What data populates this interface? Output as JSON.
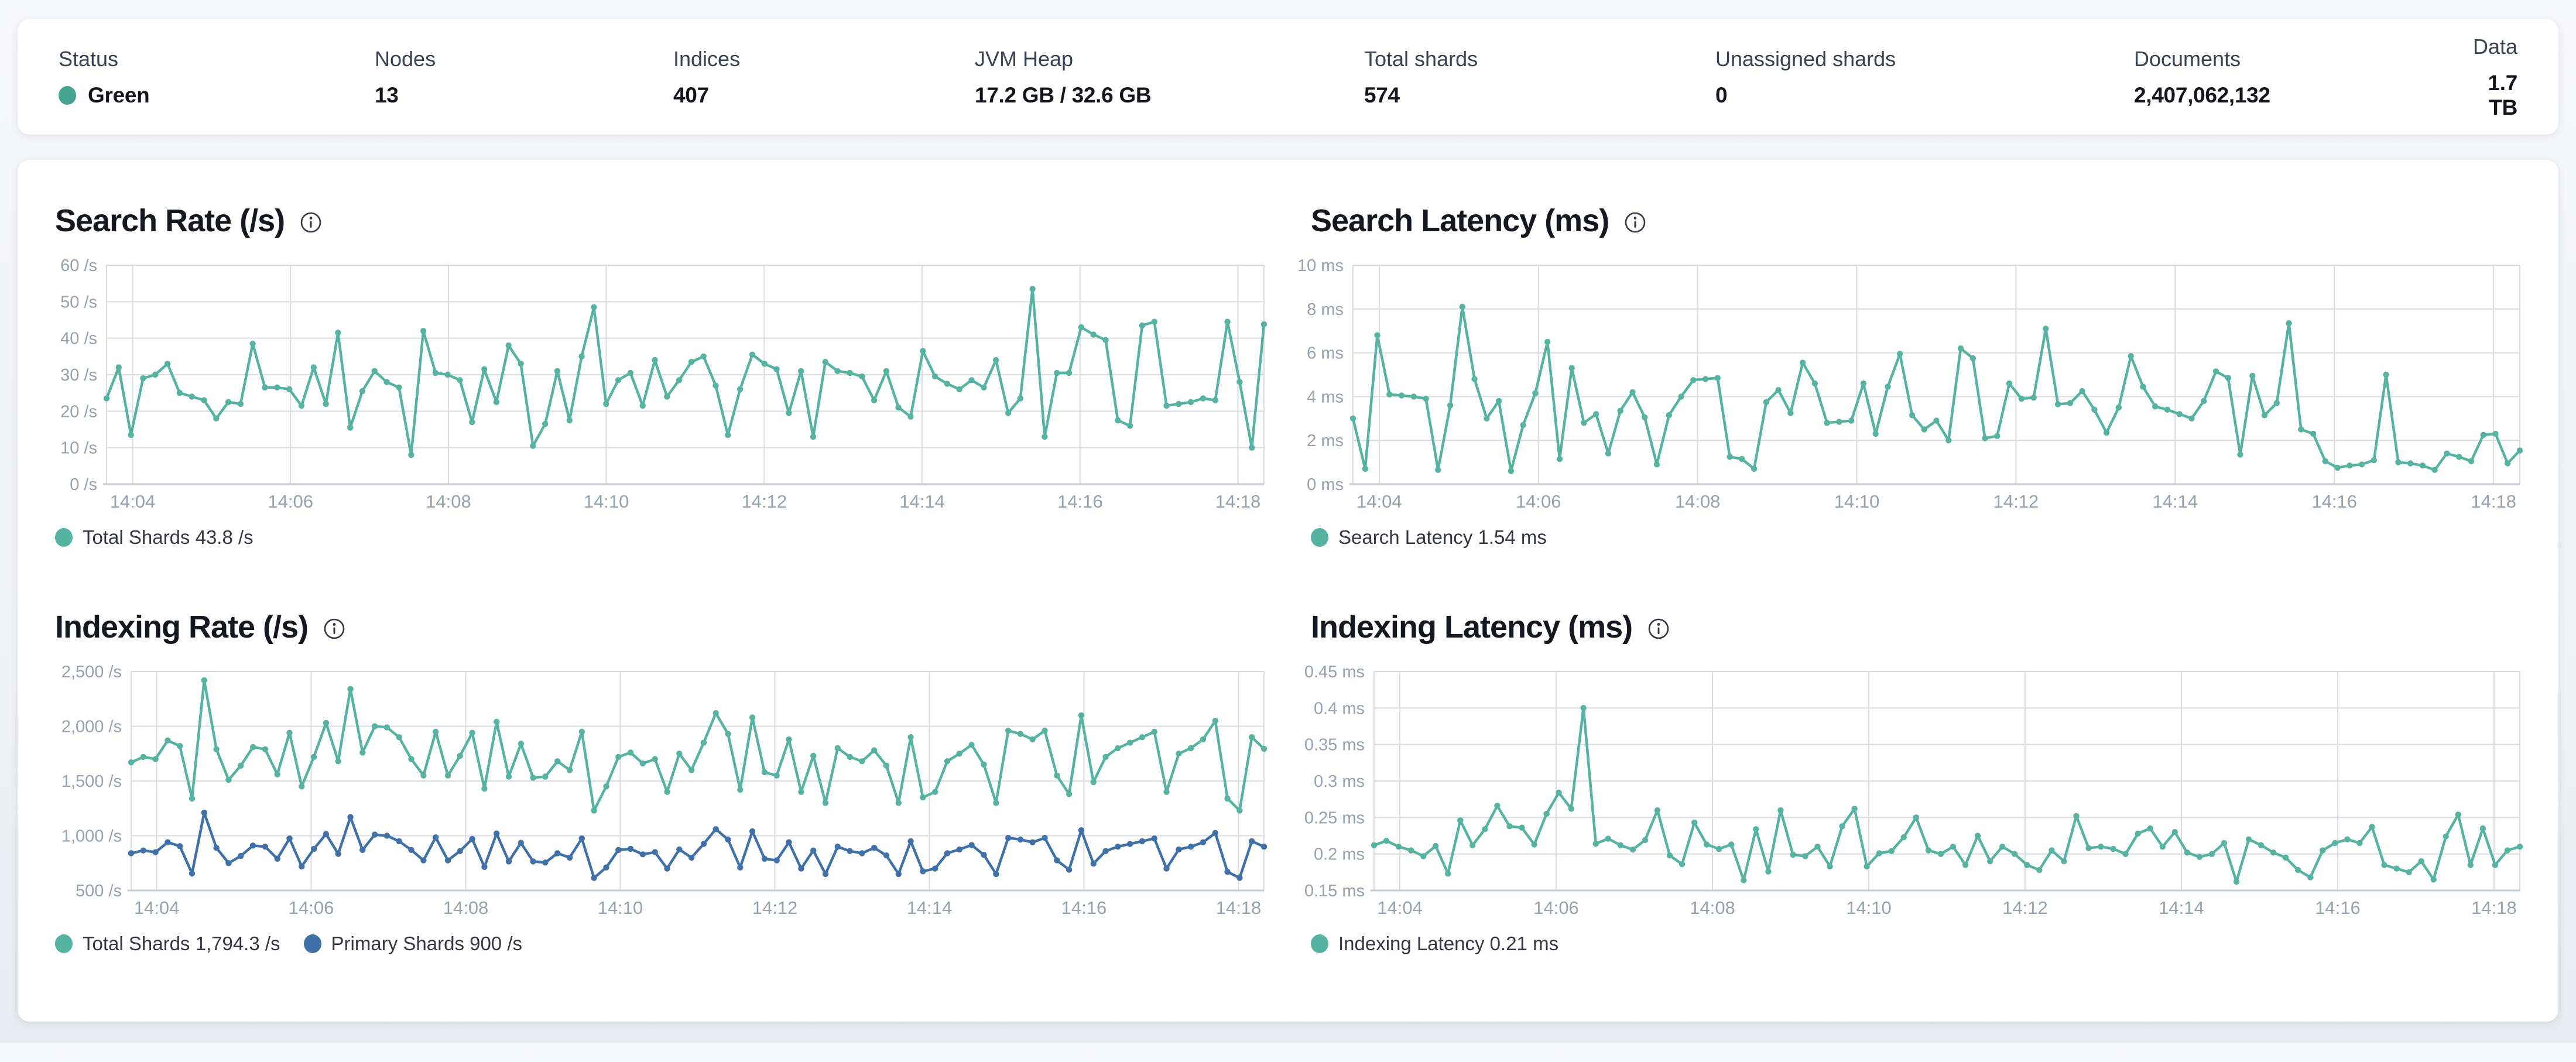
{
  "summary": {
    "items": [
      {
        "label": "Status",
        "value": "Green",
        "dot_color": "#45a492"
      },
      {
        "label": "Nodes",
        "value": "13"
      },
      {
        "label": "Indices",
        "value": "407"
      },
      {
        "label": "JVM Heap",
        "value": "17.2 GB / 32.6 GB"
      },
      {
        "label": "Total shards",
        "value": "574"
      },
      {
        "label": "Unassigned shards",
        "value": "0"
      },
      {
        "label": "Documents",
        "value": "2,407,062,132"
      },
      {
        "label": "Data",
        "value": "1.7 TB"
      }
    ]
  },
  "colors": {
    "teal": "#56b3a2",
    "blue": "#4070a8",
    "status_green": "#45a492",
    "grid": "#d8dbe1",
    "axis": "#c6ccd4",
    "tick_text": "#97a1ae"
  },
  "chart_data": [
    {
      "type": "line",
      "title": "Search Rate (/s)",
      "x_ticks": [
        "14:04",
        "14:06",
        "14:08",
        "14:10",
        "14:12",
        "14:14",
        "14:16",
        "14:18"
      ],
      "y_tick_labels": [
        "60 /s",
        "50 /s",
        "40 /s",
        "30 /s",
        "20 /s",
        "10 /s",
        "0 /s"
      ],
      "y_tick_values": [
        60,
        50,
        40,
        30,
        20,
        10,
        0
      ],
      "ylim": [
        0,
        60
      ],
      "grid": true,
      "legend_position": "bottom",
      "series": [
        {
          "name": "Total Shards",
          "legend_text": "Total Shards 43.8 /s",
          "color": "#56b3a2",
          "values": [
            23.5,
            32,
            13.5,
            29,
            30,
            33,
            25,
            24,
            23,
            18,
            22.5,
            22,
            38.5,
            26.5,
            26.5,
            26,
            21.5,
            32,
            22,
            41.5,
            15.5,
            25.5,
            31,
            28,
            26.5,
            8,
            42,
            30.5,
            30,
            28.5,
            17,
            31.5,
            22.5,
            38,
            33,
            10.5,
            16.5,
            31,
            17.5,
            35,
            48.5,
            22,
            28.5,
            30.5,
            21.5,
            34,
            24,
            28.5,
            33.5,
            35,
            27,
            13.5,
            26,
            35.5,
            33,
            31.5,
            19.5,
            31,
            13,
            33.5,
            31,
            30.5,
            29.5,
            23,
            31,
            21,
            18.5,
            36.5,
            29.5,
            27.5,
            26,
            28.5,
            26.5,
            34,
            19.5,
            23.5,
            53.5,
            13,
            30.5,
            30.5,
            43,
            41,
            39.5,
            17.5,
            16,
            43.5,
            44.5,
            21.5,
            22,
            22.5,
            23.5,
            23,
            44.5,
            28,
            10,
            43.8
          ]
        }
      ]
    },
    {
      "type": "line",
      "title": "Search Latency (ms)",
      "x_ticks": [
        "14:04",
        "14:06",
        "14:08",
        "14:10",
        "14:12",
        "14:14",
        "14:16",
        "14:18"
      ],
      "y_tick_labels": [
        "10 ms",
        "8 ms",
        "6 ms",
        "4 ms",
        "2 ms",
        "0 ms"
      ],
      "y_tick_values": [
        10,
        8,
        6,
        4,
        2,
        0
      ],
      "ylim": [
        0,
        10
      ],
      "grid": true,
      "legend_position": "bottom",
      "series": [
        {
          "name": "Search Latency",
          "legend_text": "Search Latency 1.54 ms",
          "color": "#56b3a2",
          "values": [
            3.0,
            0.7,
            6.8,
            4.1,
            4.05,
            4.0,
            3.9,
            0.65,
            3.6,
            8.1,
            4.8,
            3.0,
            3.8,
            0.6,
            2.7,
            4.15,
            6.5,
            1.15,
            5.3,
            2.8,
            3.2,
            1.4,
            3.35,
            4.2,
            3.05,
            0.9,
            3.15,
            4.0,
            4.75,
            4.8,
            4.85,
            1.25,
            1.15,
            0.7,
            3.75,
            4.3,
            3.25,
            5.55,
            4.6,
            2.8,
            2.85,
            2.9,
            4.6,
            2.3,
            4.45,
            5.95,
            3.15,
            2.5,
            2.9,
            2.0,
            6.2,
            5.75,
            2.1,
            2.2,
            4.6,
            3.9,
            3.95,
            7.1,
            3.65,
            3.7,
            4.25,
            3.4,
            2.35,
            3.5,
            5.85,
            4.45,
            3.55,
            3.4,
            3.2,
            3.0,
            3.8,
            5.15,
            4.85,
            1.35,
            4.95,
            3.15,
            3.7,
            7.35,
            2.5,
            2.3,
            1.05,
            0.75,
            0.85,
            0.9,
            1.1,
            5.0,
            1.0,
            0.95,
            0.85,
            0.65,
            1.4,
            1.25,
            1.05,
            2.25,
            2.3,
            0.95,
            1.54
          ]
        }
      ]
    },
    {
      "type": "line",
      "title": "Indexing Rate (/s)",
      "x_ticks": [
        "14:04",
        "14:06",
        "14:08",
        "14:10",
        "14:12",
        "14:14",
        "14:16",
        "14:18"
      ],
      "y_tick_labels": [
        "2,500 /s",
        "2,000 /s",
        "1,500 /s",
        "1,000 /s",
        "500 /s"
      ],
      "y_tick_values": [
        2500,
        2000,
        1500,
        1000,
        500
      ],
      "ylim": [
        500,
        2500
      ],
      "grid": true,
      "legend_position": "bottom",
      "series": [
        {
          "name": "Total Shards",
          "legend_text": "Total Shards 1,794.3 /s",
          "color": "#56b3a2",
          "values": [
            1670,
            1720,
            1700,
            1870,
            1820,
            1340,
            2420,
            1790,
            1510,
            1640,
            1810,
            1790,
            1560,
            1940,
            1450,
            1720,
            2030,
            1680,
            2340,
            1760,
            2000,
            1990,
            1900,
            1700,
            1550,
            1950,
            1550,
            1730,
            1940,
            1430,
            2040,
            1540,
            1840,
            1530,
            1540,
            1680,
            1600,
            1950,
            1230,
            1450,
            1720,
            1760,
            1660,
            1700,
            1400,
            1750,
            1600,
            1850,
            2120,
            1930,
            1420,
            2080,
            1580,
            1550,
            1880,
            1400,
            1730,
            1300,
            1800,
            1720,
            1680,
            1780,
            1640,
            1300,
            1900,
            1350,
            1400,
            1680,
            1750,
            1830,
            1650,
            1300,
            1960,
            1930,
            1880,
            1960,
            1550,
            1380,
            2100,
            1490,
            1720,
            1800,
            1850,
            1900,
            1950,
            1400,
            1750,
            1800,
            1880,
            2050,
            1340,
            1230,
            1900,
            1794.3
          ]
        },
        {
          "name": "Primary Shards",
          "legend_text": "Primary Shards 900 /s",
          "color": "#4070a8",
          "values": [
            840,
            865,
            850,
            940,
            905,
            655,
            1210,
            890,
            750,
            815,
            910,
            900,
            790,
            975,
            720,
            880,
            1015,
            835,
            1170,
            870,
            1010,
            1000,
            950,
            870,
            775,
            985,
            775,
            860,
            970,
            715,
            1020,
            765,
            935,
            765,
            755,
            840,
            800,
            975,
            615,
            710,
            870,
            880,
            830,
            850,
            700,
            875,
            800,
            925,
            1060,
            965,
            710,
            1040,
            790,
            775,
            940,
            700,
            865,
            650,
            900,
            860,
            840,
            890,
            820,
            650,
            950,
            675,
            700,
            840,
            875,
            915,
            825,
            650,
            980,
            965,
            940,
            980,
            775,
            690,
            1050,
            745,
            860,
            900,
            925,
            950,
            975,
            700,
            875,
            900,
            940,
            1025,
            670,
            615,
            950,
            900
          ]
        }
      ]
    },
    {
      "type": "line",
      "title": "Indexing Latency (ms)",
      "x_ticks": [
        "14:04",
        "14:06",
        "14:08",
        "14:10",
        "14:12",
        "14:14",
        "14:16",
        "14:18"
      ],
      "y_tick_labels": [
        "0.45 ms",
        "0.4 ms",
        "0.35 ms",
        "0.3 ms",
        "0.25 ms",
        "0.2 ms",
        "0.15 ms"
      ],
      "y_tick_values": [
        0.45,
        0.4,
        0.35,
        0.3,
        0.25,
        0.2,
        0.15
      ],
      "ylim": [
        0.15,
        0.45
      ],
      "grid": true,
      "legend_position": "bottom",
      "series": [
        {
          "name": "Indexing Latency",
          "legend_text": "Indexing Latency 0.21 ms",
          "color": "#56b3a2",
          "values": [
            0.212,
            0.218,
            0.21,
            0.205,
            0.197,
            0.211,
            0.173,
            0.246,
            0.212,
            0.234,
            0.266,
            0.238,
            0.236,
            0.213,
            0.255,
            0.284,
            0.262,
            0.4,
            0.214,
            0.221,
            0.212,
            0.206,
            0.219,
            0.26,
            0.198,
            0.186,
            0.243,
            0.213,
            0.207,
            0.213,
            0.164,
            0.234,
            0.176,
            0.26,
            0.199,
            0.197,
            0.21,
            0.183,
            0.238,
            0.262,
            0.183,
            0.201,
            0.204,
            0.223,
            0.25,
            0.205,
            0.2,
            0.21,
            0.185,
            0.225,
            0.19,
            0.21,
            0.2,
            0.185,
            0.178,
            0.205,
            0.19,
            0.252,
            0.208,
            0.21,
            0.207,
            0.2,
            0.228,
            0.235,
            0.21,
            0.23,
            0.202,
            0.196,
            0.2,
            0.215,
            0.162,
            0.22,
            0.212,
            0.202,
            0.195,
            0.178,
            0.168,
            0.205,
            0.215,
            0.22,
            0.215,
            0.237,
            0.185,
            0.18,
            0.175,
            0.19,
            0.165,
            0.224,
            0.254,
            0.185,
            0.235,
            0.185,
            0.205,
            0.21
          ]
        }
      ]
    }
  ]
}
